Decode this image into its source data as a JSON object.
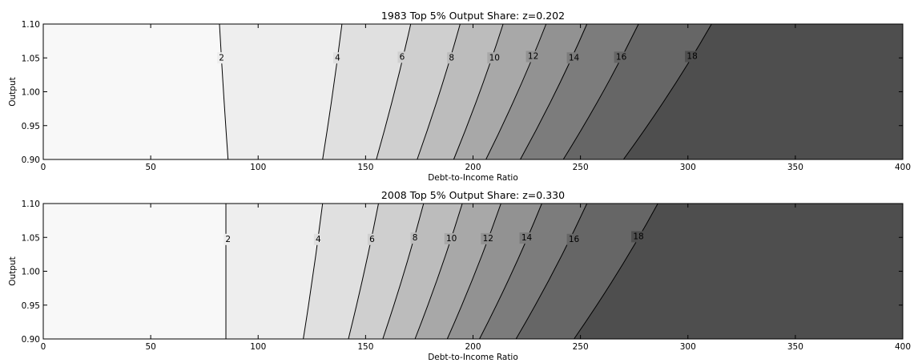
{
  "chart_data": [
    {
      "type": "contourf",
      "title": "1983 Top 5% Output Share: z=0.202",
      "xlabel": "Debt-to-Income Ratio",
      "ylabel": "Output",
      "xlim": [
        0,
        400
      ],
      "ylim": [
        0.9,
        1.1
      ],
      "xticks": [
        0,
        50,
        100,
        150,
        200,
        250,
        300,
        350,
        400
      ],
      "xtick_labels": [
        "0",
        "50",
        "100",
        "150",
        "200",
        "250",
        "300",
        "350",
        "400"
      ],
      "yticks": [
        0.9,
        0.95,
        1.0,
        1.05,
        1.1
      ],
      "ytick_labels": [
        "0.90",
        "0.95",
        "1.00",
        "1.05",
        "1.10"
      ],
      "fill_colors": [
        "#f8f8f8",
        "#eeeeee",
        "#e0e0e0",
        "#cfcfcf",
        "#bcbcbc",
        "#a8a8a8",
        "#929292",
        "#7c7c7c",
        "#666666",
        "#4e4e4e"
      ],
      "contours": [
        {
          "level": "2",
          "x_at_top": 82,
          "x_at_bottom": 86,
          "label_x": 83,
          "label_y": 1.05
        },
        {
          "level": "4",
          "x_at_top": 139,
          "x_at_bottom": 130,
          "label_x": 137,
          "label_y": 1.05
        },
        {
          "level": "6",
          "x_at_top": 171,
          "x_at_bottom": 155,
          "label_x": 167,
          "label_y": 1.051
        },
        {
          "level": "8",
          "x_at_top": 194,
          "x_at_bottom": 174,
          "label_x": 190,
          "label_y": 1.05
        },
        {
          "level": "10",
          "x_at_top": 214,
          "x_at_bottom": 191,
          "label_x": 210,
          "label_y": 1.05
        },
        {
          "level": "12",
          "x_at_top": 234,
          "x_at_bottom": 206,
          "label_x": 228,
          "label_y": 1.052
        },
        {
          "level": "14",
          "x_at_top": 253,
          "x_at_bottom": 222,
          "label_x": 247,
          "label_y": 1.05
        },
        {
          "level": "16",
          "x_at_top": 277,
          "x_at_bottom": 242,
          "label_x": 269,
          "label_y": 1.051
        },
        {
          "level": "18",
          "x_at_top": 311,
          "x_at_bottom": 270,
          "label_x": 302,
          "label_y": 1.052
        }
      ]
    },
    {
      "type": "contourf",
      "title": "2008 Top 5% Output Share: z=0.330",
      "xlabel": "Debt-to-Income Ratio",
      "ylabel": "Output",
      "xlim": [
        0,
        400
      ],
      "ylim": [
        0.9,
        1.1
      ],
      "xticks": [
        0,
        50,
        100,
        150,
        200,
        250,
        300,
        350,
        400
      ],
      "xtick_labels": [
        "0",
        "50",
        "100",
        "150",
        "200",
        "250",
        "300",
        "350",
        "400"
      ],
      "yticks": [
        0.9,
        0.95,
        1.0,
        1.05,
        1.1
      ],
      "ytick_labels": [
        "0.90",
        "0.95",
        "1.00",
        "1.05",
        "1.10"
      ],
      "fill_colors": [
        "#f8f8f8",
        "#eeeeee",
        "#e0e0e0",
        "#cfcfcf",
        "#bcbcbc",
        "#a8a8a8",
        "#929292",
        "#7c7c7c",
        "#666666",
        "#4e4e4e"
      ],
      "contours": [
        {
          "level": "2",
          "x_at_top": 85,
          "x_at_bottom": 85,
          "label_x": 86,
          "label_y": 1.047
        },
        {
          "level": "4",
          "x_at_top": 130,
          "x_at_bottom": 121,
          "label_x": 128,
          "label_y": 1.047
        },
        {
          "level": "6",
          "x_at_top": 156,
          "x_at_bottom": 142,
          "label_x": 153,
          "label_y": 1.047
        },
        {
          "level": "8",
          "x_at_top": 177,
          "x_at_bottom": 158,
          "label_x": 173,
          "label_y": 1.049
        },
        {
          "level": "10",
          "x_at_top": 195,
          "x_at_bottom": 173,
          "label_x": 190,
          "label_y": 1.048
        },
        {
          "level": "12",
          "x_at_top": 213,
          "x_at_bottom": 188,
          "label_x": 207,
          "label_y": 1.048
        },
        {
          "level": "14",
          "x_at_top": 232,
          "x_at_bottom": 203,
          "label_x": 225,
          "label_y": 1.049
        },
        {
          "level": "16",
          "x_at_top": 253,
          "x_at_bottom": 220,
          "label_x": 247,
          "label_y": 1.047
        },
        {
          "level": "18",
          "x_at_top": 286,
          "x_at_bottom": 247,
          "label_x": 277,
          "label_y": 1.051
        }
      ]
    }
  ]
}
